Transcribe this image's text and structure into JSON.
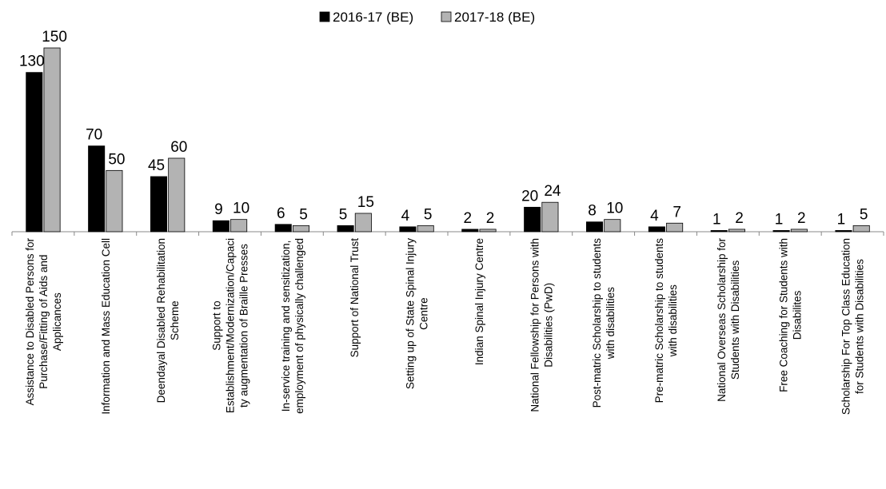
{
  "chart_data": {
    "type": "bar",
    "categories": [
      "Assistance to Disabled Persons for\nPurchase/Fitting of Aids and\nApplicances",
      "Information and Mass Education Cell",
      "Deendayal Disabled Rehabilitation\nScheme",
      "Support to\nEstablishment/Modernization/Capaci\nty augmentation of Braille Presses",
      "In-service training and sensitization,\nemployment of physically challenged",
      "Support of National Trust",
      "Setting up of State Spinal Injury\nCentre",
      "Indian Spinal Injury Centre",
      "National Fellowship for Persons with\nDisabilities (PwD)",
      "Post-matric Scholarship to students\nwith disabilities",
      "Pre-matric Scholarship to students\nwith disabilities",
      "National Overseas Scholarship for\nStudents with Disabilities",
      "Free Coaching for Students with\nDisabilites",
      "Scholarship For Top Class Education\nfor Students with Disabilities"
    ],
    "series": [
      {
        "name": "2016-17 (BE)",
        "color": "#000000",
        "values": [
          130,
          70,
          45,
          9,
          6,
          5,
          4,
          2,
          20,
          8,
          4,
          1,
          1,
          1
        ]
      },
      {
        "name": "2017-18 (BE)",
        "color": "#b3b3b3",
        "values": [
          150,
          50,
          60,
          10,
          5,
          15,
          5,
          2,
          24,
          10,
          7,
          2,
          2,
          5
        ]
      }
    ],
    "ylim": [
      0,
      150
    ],
    "grid": false,
    "legend": "top"
  }
}
